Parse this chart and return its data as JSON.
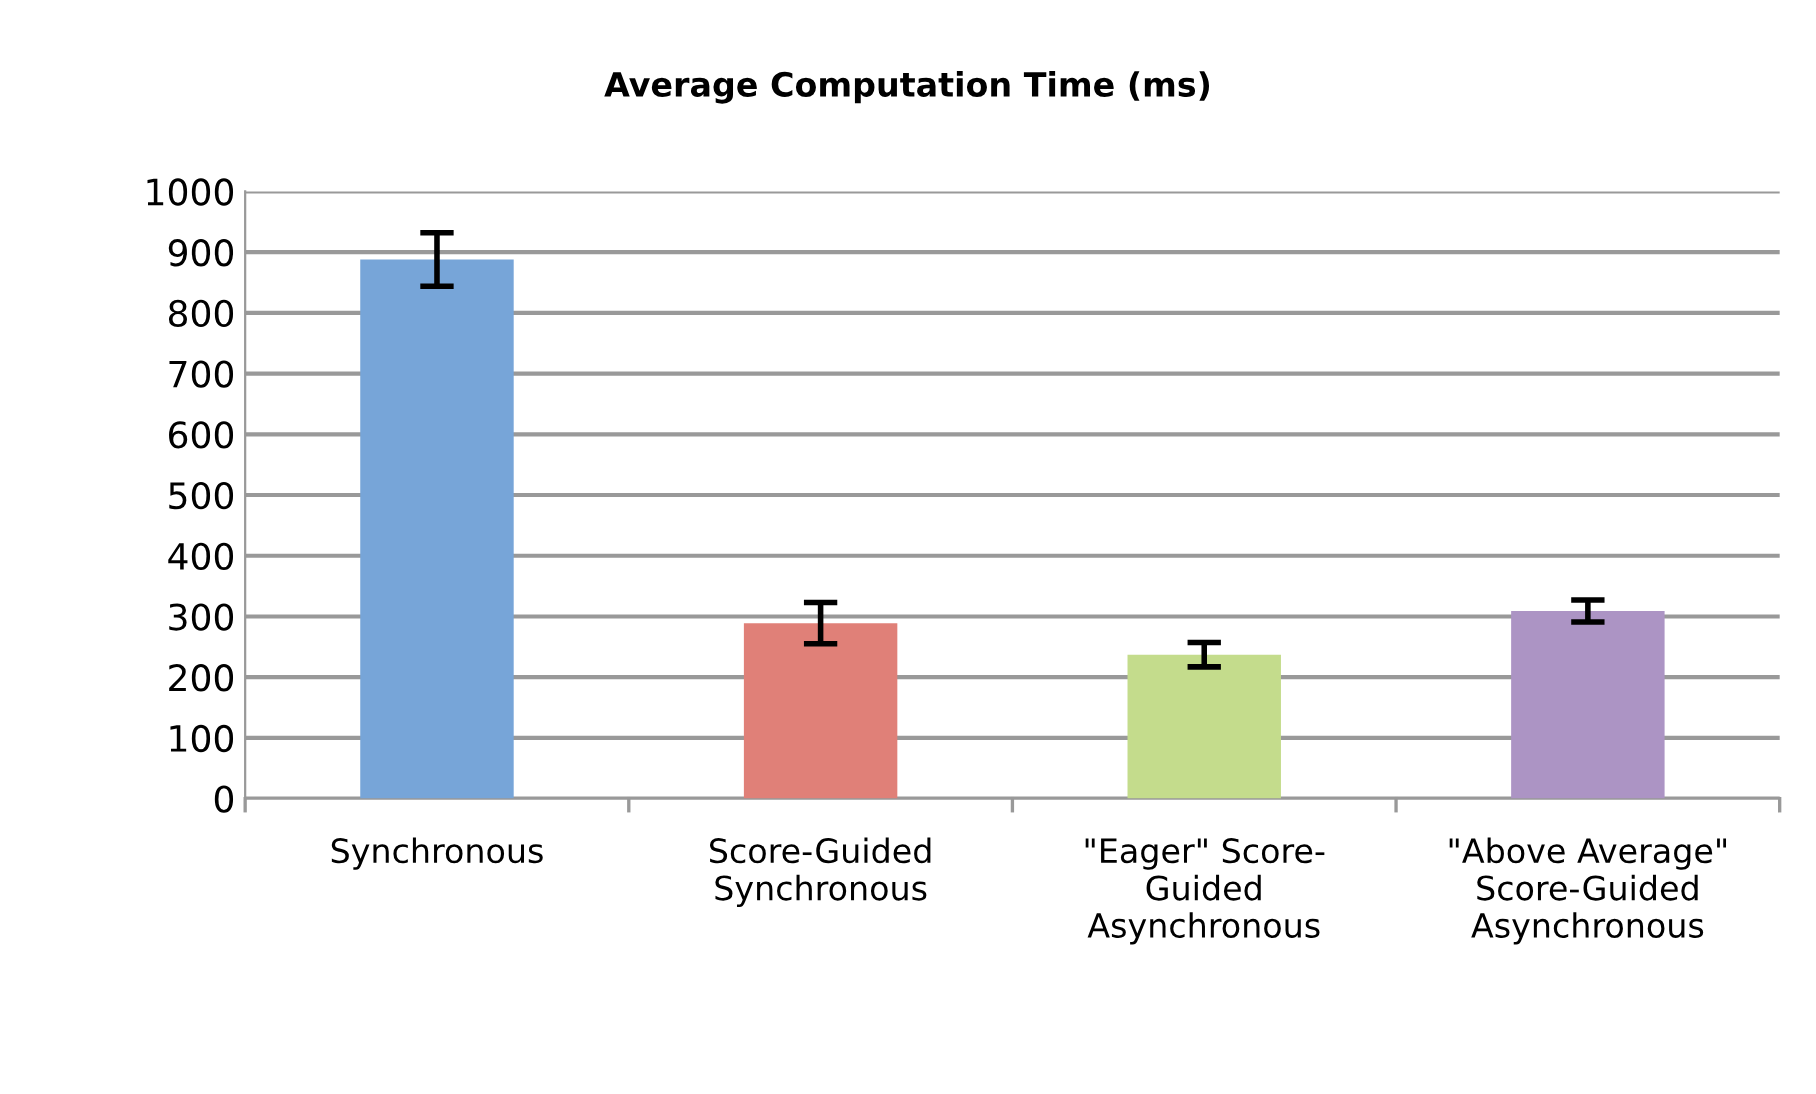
{
  "chart_data": {
    "type": "bar",
    "title": "Average Computation Time (ms)",
    "categories": [
      "Synchronous",
      "Score-Guided\nSynchronous",
      "\"Eager\" Score-\nGuided\nAsynchronous",
      "\"Above Average\"\nScore-Guided\nAsynchronous"
    ],
    "values": [
      888,
      289,
      237,
      309
    ],
    "errors": [
      44,
      34,
      20,
      18
    ],
    "colors": [
      "#77a5d8",
      "#e08078",
      "#c4dc8c",
      "#ac94c4"
    ],
    "ylim": [
      0,
      1000
    ],
    "yticks": [
      0,
      100,
      200,
      300,
      400,
      500,
      600,
      700,
      800,
      900,
      1000
    ],
    "grid": "y"
  }
}
